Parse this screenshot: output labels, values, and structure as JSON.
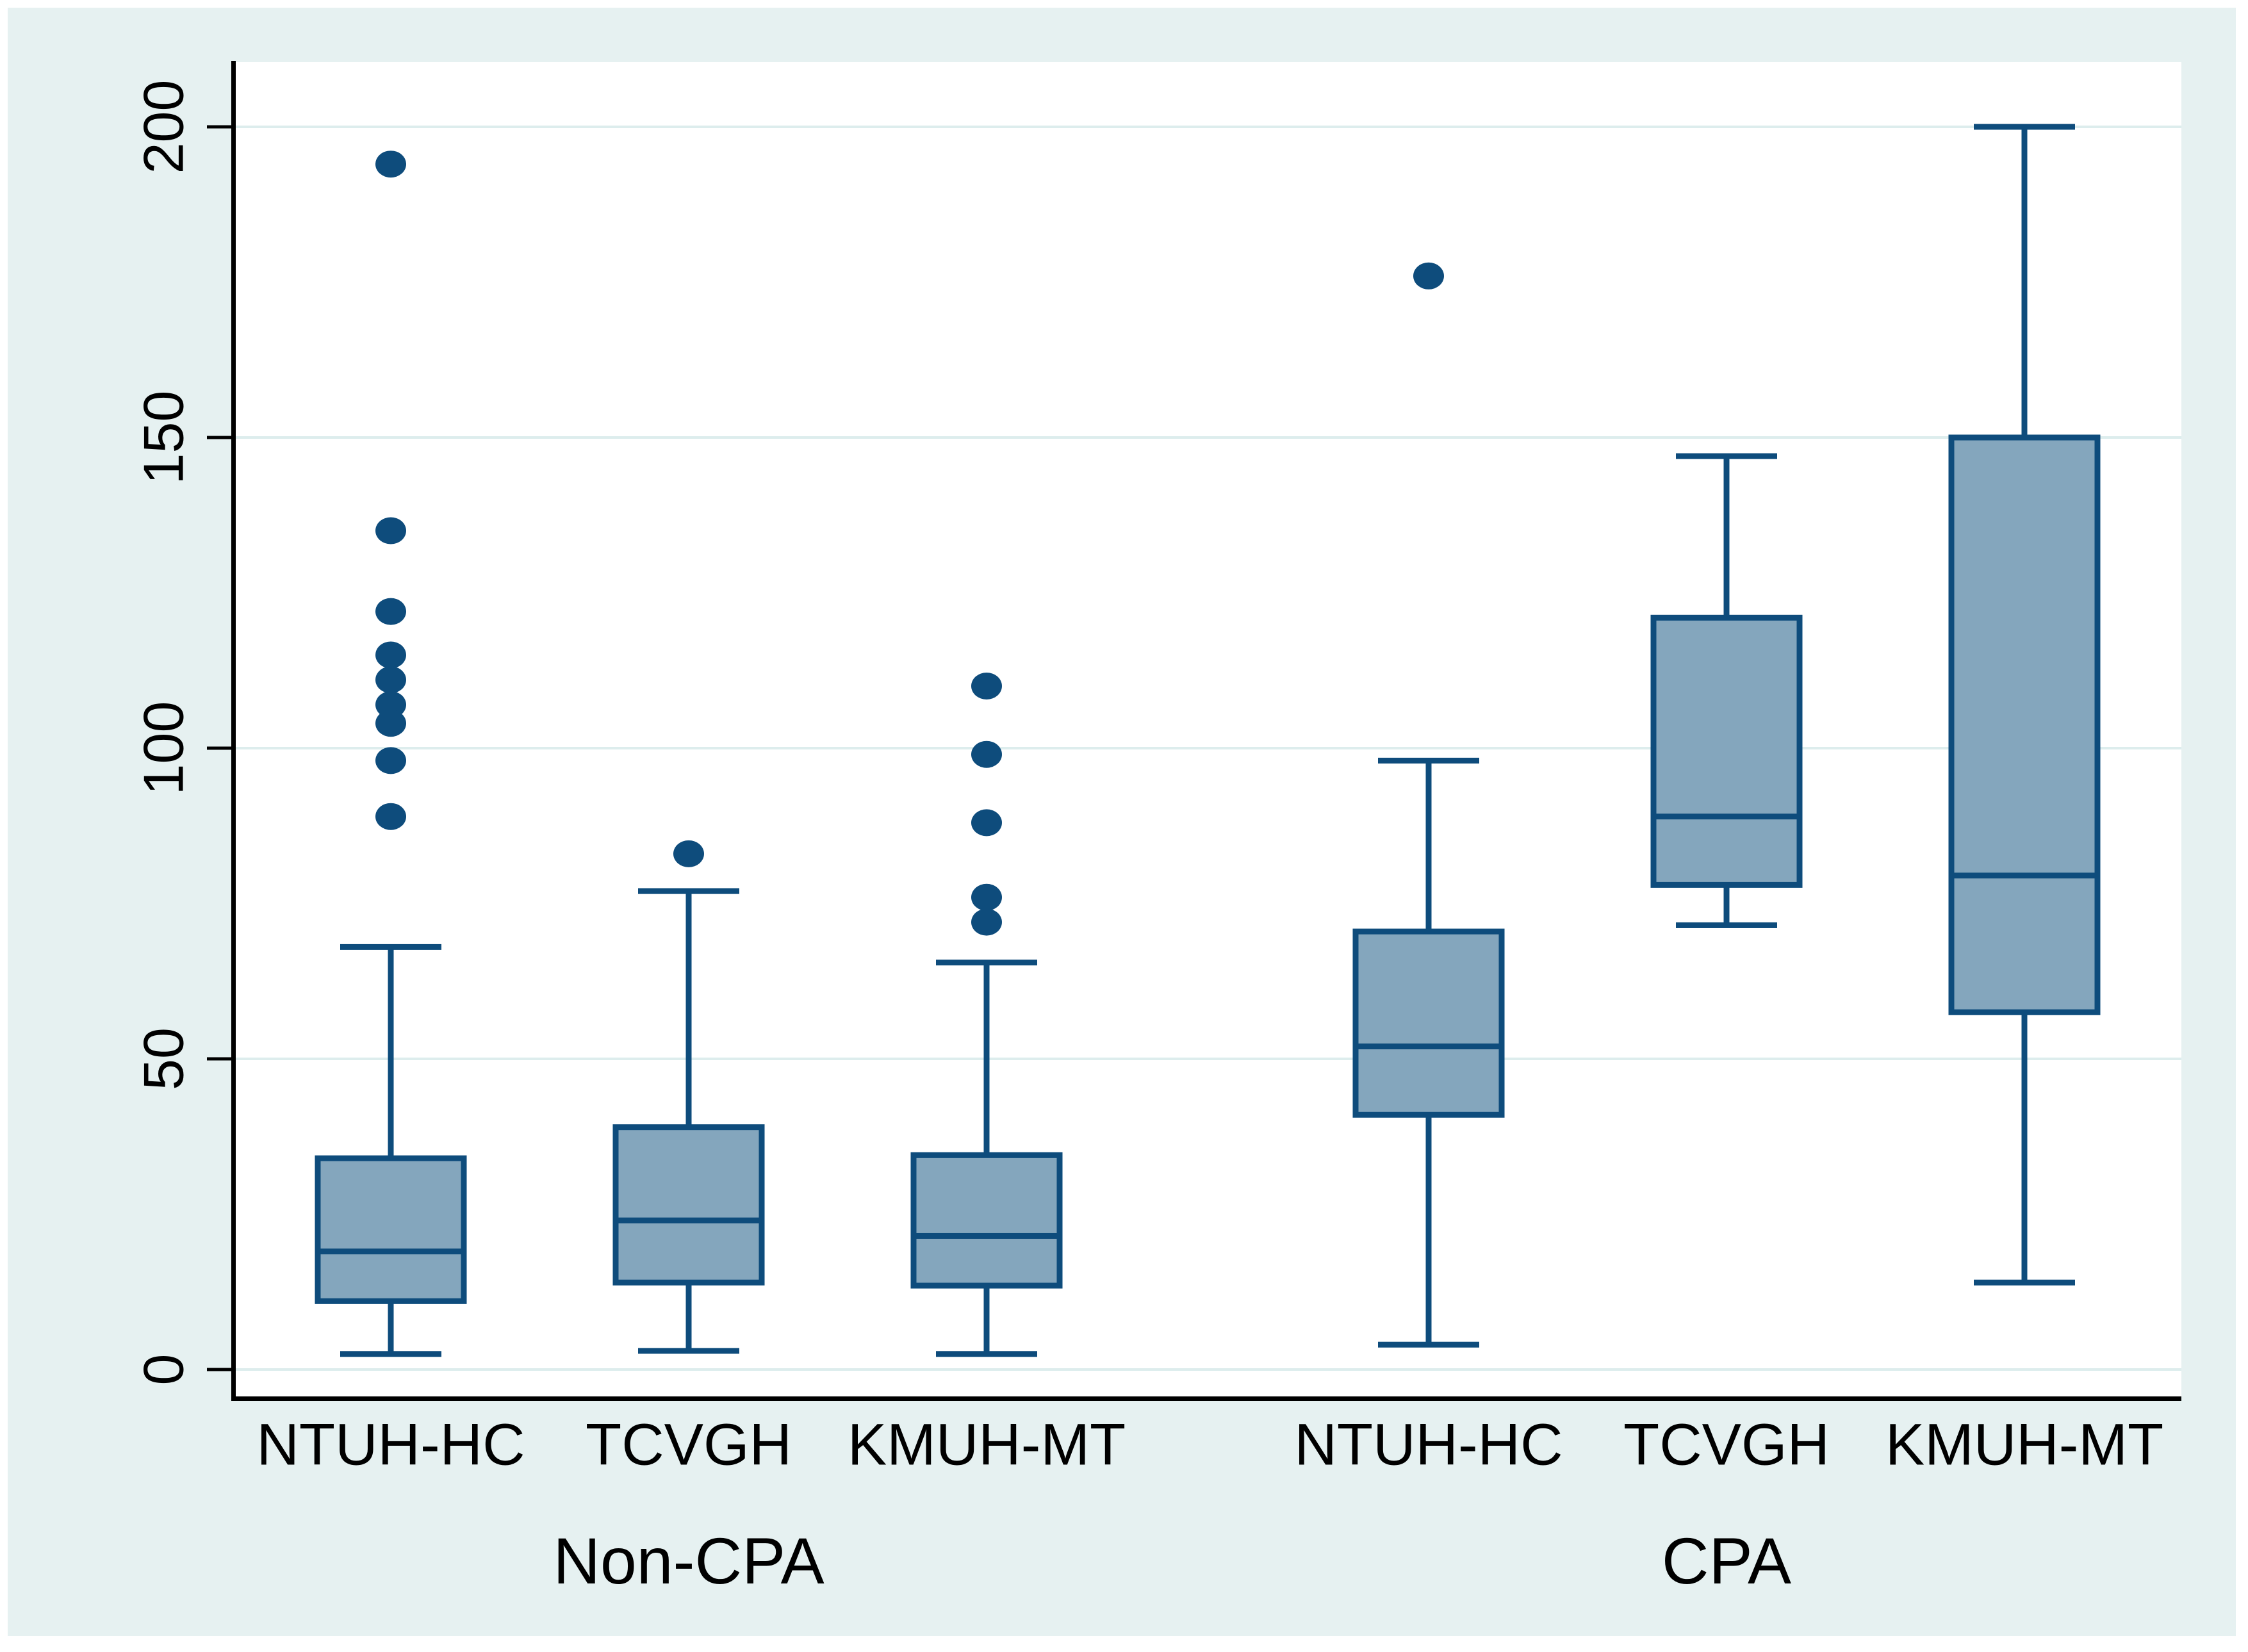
{
  "chart_data": {
    "type": "box",
    "title": "",
    "xlabel": "",
    "ylabel": "",
    "legend": "none",
    "grid": "horizontal",
    "y_axis": {
      "ticks": [
        0,
        50,
        100,
        150,
        200
      ],
      "lim": [
        -4,
        210
      ]
    },
    "groups": [
      {
        "label": "Non-CPA",
        "boxes": [
          {
            "label": "NTUH-HC",
            "whisker_low": 2.5,
            "q1": 11,
            "median": 19,
            "q3": 34,
            "whisker_high": 68,
            "outliers": [
              194,
              135,
              122,
              115,
              111,
              107,
              104,
              98,
              89
            ]
          },
          {
            "label": "TCVGH",
            "whisker_low": 3,
            "q1": 14,
            "median": 24,
            "q3": 39,
            "whisker_high": 77,
            "outliers": [
              83
            ]
          },
          {
            "label": "KMUH-MT",
            "whisker_low": 2.5,
            "q1": 13.5,
            "median": 21.5,
            "q3": 34.5,
            "whisker_high": 65.5,
            "outliers": [
              110,
              99,
              88,
              76,
              72
            ]
          }
        ]
      },
      {
        "label": "CPA",
        "boxes": [
          {
            "label": "NTUH-HC",
            "whisker_low": 4,
            "q1": 41,
            "median": 52,
            "q3": 70.5,
            "whisker_high": 98,
            "outliers": [
              176
            ]
          },
          {
            "label": "TCVGH",
            "whisker_low": 71.5,
            "q1": 78,
            "median": 89,
            "q3": 121,
            "whisker_high": 147,
            "outliers": []
          },
          {
            "label": "KMUH-MT",
            "whisker_low": 14,
            "q1": 57.5,
            "median": 79.5,
            "q3": 150,
            "whisker_high": 200,
            "outliers": []
          }
        ]
      }
    ],
    "colors": {
      "box_fill": "#84a6bd",
      "stroke_navy": "#0e4c7c",
      "gridline": "#ddeded",
      "panel_background": "#e6f1f1",
      "plot_background": "#ffffff",
      "axis": "#000000",
      "text": "#000000"
    }
  }
}
